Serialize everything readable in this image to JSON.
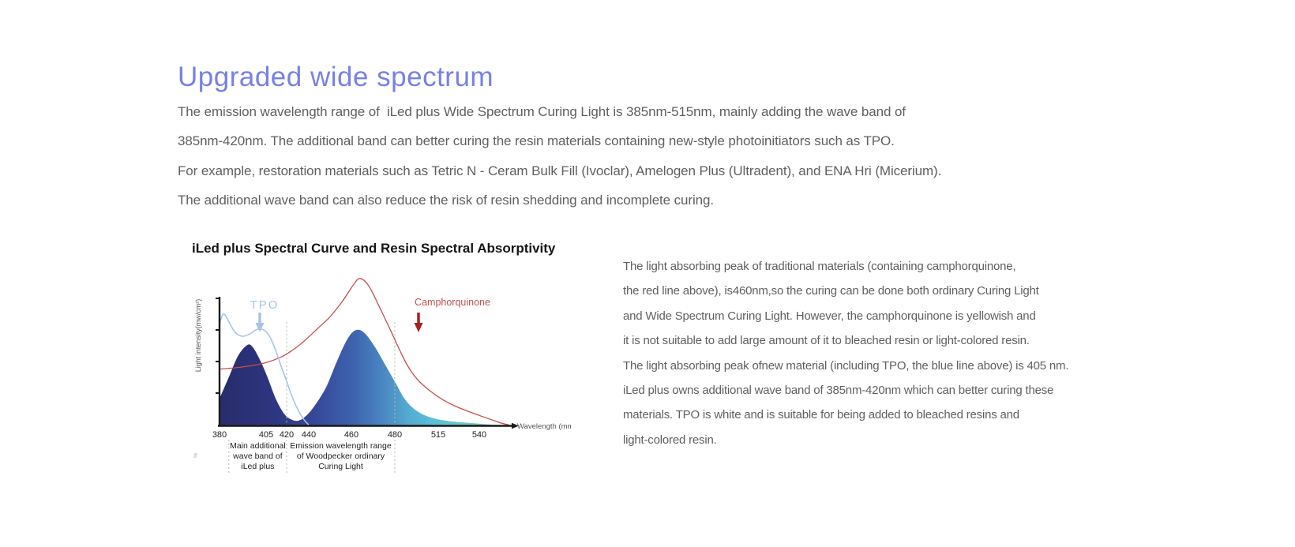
{
  "header": {
    "title": "Upgraded wide spectrum"
  },
  "colors": {
    "title_accent": "#7880e6",
    "body_text": "#5f5f5f",
    "tpo": "#a9c3e6",
    "camphorquinone": "#c0504d",
    "camphorquinone_arrow": "#a8201f",
    "axis": "#1a1a1a",
    "emission_gradient": [
      "#282c6b",
      "#2e3680",
      "#364a9a",
      "#3e63ae",
      "#4a86c2",
      "#55add2",
      "#5cc3d6",
      "#6ec9c6",
      "#8bceaa"
    ]
  },
  "intro": {
    "lines": [
      "The emission wavelength range of  iLed plus Wide Spectrum Curing Light is 385nm-515nm, mainly adding the wave band of",
      "385nm-420nm. The additional band can better curing the resin materials containing new-style photoinitiators such as TPO.",
      "For example, restoration materials such as Tetric N - Ceram Bulk Fill (Ivoclar), Amelogen Plus (Ultradent), and ENA Hri (Micerium).",
      "The additional wave band can also reduce the risk of resin shedding and incomplete curing."
    ]
  },
  "chart_meta": {
    "side_micro_label": "%"
  },
  "chart_data": {
    "type": "area",
    "title": "iLed plus Spectral Curve and Resin Spectral Absorptivity",
    "xlabel": "Wavelength (mm)",
    "ylabel": "Light intensity(mw/cm²)",
    "x_ticks": [
      380,
      405,
      420,
      440,
      460,
      480,
      515,
      540
    ],
    "ylim": [
      0,
      1.2
    ],
    "grid": "off",
    "dotted_guides_nm": [
      420,
      480
    ],
    "series": [
      {
        "name": "iLed plus emission spectrum",
        "style": "filled-gradient-area",
        "x": [
          380,
          385,
          390,
          395,
          398,
          402,
          406,
          412,
          418,
          424,
          430,
          436,
          442,
          448,
          453,
          458,
          462,
          466,
          471,
          476,
          481,
          487,
          494,
          502,
          512,
          522,
          535,
          545,
          552
        ],
        "y": [
          0.2,
          0.36,
          0.52,
          0.6,
          0.58,
          0.48,
          0.36,
          0.2,
          0.09,
          0.045,
          0.035,
          0.06,
          0.13,
          0.28,
          0.47,
          0.64,
          0.71,
          0.69,
          0.58,
          0.44,
          0.31,
          0.21,
          0.135,
          0.085,
          0.052,
          0.032,
          0.018,
          0.008,
          0.003
        ]
      },
      {
        "name": "TPO absorption",
        "style": "line",
        "color": "#a9c3e6",
        "x": [
          380,
          382,
          384,
          388,
          392,
          396,
          400,
          404,
          408,
          412,
          416,
          420,
          424,
          428,
          432,
          436,
          440
        ],
        "y": [
          0.76,
          0.83,
          0.8,
          0.7,
          0.665,
          0.68,
          0.715,
          0.71,
          0.655,
          0.56,
          0.44,
          0.33,
          0.235,
          0.155,
          0.09,
          0.04,
          0.005
        ]
      },
      {
        "name": "Camphorquinone absorption",
        "style": "line",
        "color": "#c0504d",
        "x": [
          380,
          392,
          404,
          416,
          426,
          436,
          444,
          450,
          456,
          461,
          464,
          468,
          473,
          478,
          483,
          490,
          498,
          508,
          518,
          528,
          540,
          548,
          554,
          558
        ],
        "y": [
          0.42,
          0.435,
          0.465,
          0.51,
          0.565,
          0.63,
          0.72,
          0.81,
          0.93,
          1.05,
          1.095,
          1.04,
          0.88,
          0.71,
          0.58,
          0.45,
          0.345,
          0.26,
          0.19,
          0.13,
          0.075,
          0.04,
          0.015,
          0.004
        ]
      }
    ],
    "annotations": [
      {
        "text": "TPO",
        "color": "#a9c3e6",
        "arrow_nm": 402
      },
      {
        "text": "Camphorquinone",
        "color": "#c0504d",
        "arrow_nm": 499
      }
    ],
    "under_axis_bands": [
      {
        "from_nm": 385,
        "to_nm": 420,
        "label_lines": [
          "Main additional",
          "wave band of",
          "iLed plus"
        ]
      },
      {
        "from_nm": 420,
        "to_nm": 480,
        "label_lines": [
          "Emission wavelength range",
          "of Woodpecker ordinary",
          "Curing Light"
        ]
      }
    ]
  },
  "explanation": {
    "lines": [
      "The light absorbing peak of traditional materials (containing camphorquinone,",
      "the red line above), is460nm,so the curing can be done both ordinary Curing Light",
      "and Wide Spectrum Curing Light. However, the camphorquinone is yellowish and",
      "it is not suitable to add large amount of it to bleached resin or light-colored resin.",
      "The light absorbing peak ofnew material (including TPO, the blue line above) is 405 nm.",
      "iLed plus owns additional wave band of 385nm-420nm which can better curing these",
      "materials. TPO is white and is suitable for being added to bleached resins and",
      "light-colored resin."
    ]
  }
}
